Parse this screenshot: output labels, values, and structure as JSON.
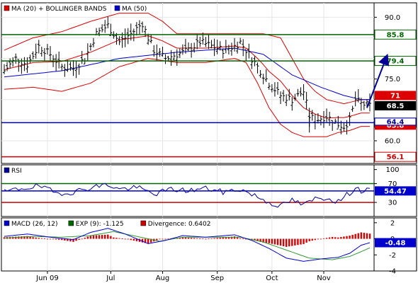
{
  "chart_data": [
    {
      "type": "line",
      "panel": "price",
      "legend": [
        "MA (20) + BOLLINGER BANDS",
        "MA (50)"
      ],
      "legend_colors": [
        "#dd0000",
        "#0000cc"
      ],
      "yticks": [
        60.0,
        65.0,
        70.0,
        75.0,
        80.0,
        85.0,
        90.0
      ],
      "ytick_labels": [
        "60.0",
        "",
        "",
        "75.0",
        "80.0",
        "",
        "90.0"
      ],
      "ylim": [
        54.5,
        93.5
      ],
      "hlines": [
        {
          "value": 85.8,
          "label": "85.8",
          "color": "#006600"
        },
        {
          "value": 79.4,
          "label": "79.4",
          "color": "#006600"
        },
        {
          "value": 64.4,
          "label": "64.4",
          "color": "#000099"
        },
        {
          "value": 56.1,
          "label": "56.1",
          "color": "#cc0000"
        }
      ],
      "price_badges": [
        {
          "value": 71,
          "label": "71",
          "bg": "#dd0000",
          "fg": "#ffffff"
        },
        {
          "value": 68.5,
          "label": "68.5",
          "bg": "#000000",
          "fg": "#ffffff"
        },
        {
          "value": 63.8,
          "label": "63.8",
          "bg": "#dd0000",
          "fg": "#ffffff"
        }
      ],
      "arrow": {
        "from": [
          126,
          68.0
        ],
        "to": [
          132,
          80.5
        ],
        "color": "#000099"
      },
      "n_bars": 128,
      "close_anchors": [
        [
          0,
          77
        ],
        [
          4,
          80
        ],
        [
          8,
          78.5
        ],
        [
          12,
          83
        ],
        [
          16,
          81
        ],
        [
          20,
          78
        ],
        [
          24,
          77.5
        ],
        [
          28,
          80
        ],
        [
          32,
          86
        ],
        [
          36,
          88
        ],
        [
          40,
          84
        ],
        [
          44,
          86
        ],
        [
          48,
          88.5
        ],
        [
          50,
          85
        ],
        [
          52,
          82
        ],
        [
          56,
          80
        ],
        [
          60,
          81
        ],
        [
          64,
          82
        ],
        [
          68,
          84
        ],
        [
          72,
          83
        ],
        [
          76,
          82
        ],
        [
          80,
          83
        ],
        [
          82,
          84
        ],
        [
          84,
          82
        ],
        [
          88,
          78
        ],
        [
          92,
          74
        ],
        [
          96,
          71
        ],
        [
          100,
          70
        ],
        [
          104,
          72
        ],
        [
          106,
          66
        ],
        [
          108,
          65
        ],
        [
          112,
          66
        ],
        [
          116,
          64
        ],
        [
          118,
          63.5
        ],
        [
          120,
          65
        ],
        [
          122,
          70
        ],
        [
          124,
          69
        ],
        [
          127,
          68.5
        ]
      ],
      "ma50_anchors": [
        [
          0,
          75.5
        ],
        [
          20,
          77
        ],
        [
          40,
          80
        ],
        [
          60,
          81.5
        ],
        [
          80,
          82.5
        ],
        [
          90,
          81
        ],
        [
          100,
          76
        ],
        [
          110,
          73
        ],
        [
          118,
          71
        ],
        [
          124,
          70
        ]
      ],
      "bb_upper_anchors": [
        [
          0,
          82
        ],
        [
          10,
          85
        ],
        [
          20,
          86.5
        ],
        [
          30,
          89
        ],
        [
          40,
          91
        ],
        [
          50,
          91
        ],
        [
          55,
          89
        ],
        [
          60,
          86
        ],
        [
          70,
          86
        ],
        [
          80,
          86
        ],
        [
          90,
          86
        ],
        [
          96,
          85
        ],
        [
          100,
          80
        ],
        [
          104,
          75
        ],
        [
          108,
          72
        ],
        [
          112,
          70
        ],
        [
          118,
          69
        ],
        [
          124,
          70
        ]
      ],
      "bb_lower_anchors": [
        [
          0,
          72.5
        ],
        [
          10,
          73
        ],
        [
          20,
          72
        ],
        [
          30,
          74
        ],
        [
          40,
          78
        ],
        [
          50,
          80
        ],
        [
          60,
          79
        ],
        [
          70,
          79
        ],
        [
          80,
          80
        ],
        [
          84,
          79
        ],
        [
          88,
          74
        ],
        [
          92,
          68
        ],
        [
          96,
          64
        ],
        [
          100,
          62
        ],
        [
          104,
          61
        ],
        [
          108,
          61
        ],
        [
          112,
          61
        ],
        [
          116,
          62
        ],
        [
          120,
          62.5
        ],
        [
          124,
          63.5
        ]
      ]
    },
    {
      "type": "line",
      "panel": "rsi",
      "legend": [
        "RSI"
      ],
      "legend_colors": [
        "#000099"
      ],
      "yticks": [
        30,
        70,
        100
      ],
      "ytick_labels": [
        "30",
        "70",
        "100"
      ],
      "ylim": [
        0,
        110
      ],
      "hlines": [
        {
          "value": 70,
          "label": "70",
          "color": "#006600"
        },
        {
          "value": 54.47,
          "label": "54.47",
          "color": "#0000cc"
        },
        {
          "value": 30,
          "label": "30",
          "color": "#cc0000"
        }
      ],
      "value_badge": {
        "value": 54.47,
        "label": "54.47",
        "bg": "#0000cc",
        "fg": "#ffffff"
      },
      "anchors": [
        [
          0,
          52
        ],
        [
          6,
          60
        ],
        [
          12,
          65
        ],
        [
          18,
          50
        ],
        [
          24,
          52
        ],
        [
          30,
          62
        ],
        [
          36,
          68
        ],
        [
          40,
          58
        ],
        [
          46,
          62
        ],
        [
          52,
          48
        ],
        [
          58,
          58
        ],
        [
          64,
          55
        ],
        [
          70,
          60
        ],
        [
          76,
          52
        ],
        [
          82,
          58
        ],
        [
          88,
          42
        ],
        [
          92,
          30
        ],
        [
          96,
          22
        ],
        [
          100,
          35
        ],
        [
          104,
          24
        ],
        [
          108,
          38
        ],
        [
          112,
          40
        ],
        [
          116,
          32
        ],
        [
          120,
          50
        ],
        [
          122,
          62
        ],
        [
          124,
          55
        ],
        [
          127,
          54.5
        ]
      ]
    },
    {
      "type": "bar",
      "panel": "macd",
      "legend": [
        "MACD (26, 12)",
        "EXP (9): -1.125",
        "Divergence: 0.6402"
      ],
      "legend_colors": [
        "#0000cc",
        "#006600",
        "#cc0000"
      ],
      "yticks": [
        -4,
        -2,
        0,
        2
      ],
      "ytick_labels": [
        "-4",
        "-2",
        "0",
        "2"
      ],
      "ylim": [
        -4,
        2.6
      ],
      "value_badge": {
        "value": -0.48,
        "label": "-0.48",
        "bg": "#0000cc",
        "fg": "#ffffff"
      },
      "macd_anchors": [
        [
          0,
          0.3
        ],
        [
          8,
          0.6
        ],
        [
          16,
          0.2
        ],
        [
          24,
          -0.1
        ],
        [
          30,
          0.8
        ],
        [
          36,
          1.3
        ],
        [
          42,
          0.6
        ],
        [
          50,
          -0.6
        ],
        [
          56,
          -0.2
        ],
        [
          62,
          0.4
        ],
        [
          70,
          0.2
        ],
        [
          80,
          0.5
        ],
        [
          86,
          -0.2
        ],
        [
          92,
          -1.2
        ],
        [
          98,
          -2.4
        ],
        [
          104,
          -2.8
        ],
        [
          110,
          -2.5
        ],
        [
          116,
          -2.3
        ],
        [
          120,
          -1.8
        ],
        [
          124,
          -0.8
        ],
        [
          127,
          -0.48
        ]
      ],
      "signal_anchors": [
        [
          0,
          0.1
        ],
        [
          10,
          0.3
        ],
        [
          20,
          0.2
        ],
        [
          30,
          0.4
        ],
        [
          38,
          0.9
        ],
        [
          46,
          0.3
        ],
        [
          54,
          -0.3
        ],
        [
          62,
          0.2
        ],
        [
          72,
          0.2
        ],
        [
          82,
          0.2
        ],
        [
          90,
          -0.4
        ],
        [
          98,
          -1.4
        ],
        [
          106,
          -2.4
        ],
        [
          114,
          -2.6
        ],
        [
          120,
          -2.2
        ],
        [
          124,
          -1.6
        ],
        [
          127,
          -1.125
        ]
      ]
    }
  ],
  "x_axis": {
    "month_labels": [
      {
        "label": "Jun 09",
        "bar": 15
      },
      {
        "label": "Jul",
        "bar": 37
      },
      {
        "label": "Aug",
        "bar": 55
      },
      {
        "label": "Sep",
        "bar": 74
      },
      {
        "label": "Oct",
        "bar": 93
      },
      {
        "label": "Nov",
        "bar": 111
      }
    ]
  }
}
